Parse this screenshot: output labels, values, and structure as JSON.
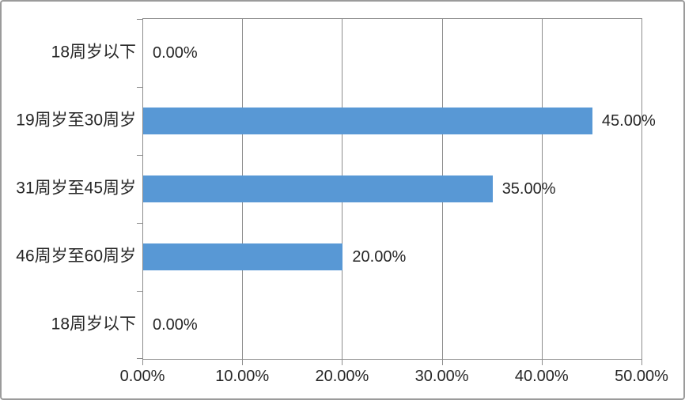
{
  "chart_data": {
    "type": "bar",
    "orientation": "horizontal",
    "title": "",
    "legend": "none",
    "grid": "vertical",
    "categories": [
      "18周岁以下",
      "19周岁至30周岁",
      "31周岁至45周岁",
      "46周岁至60周岁",
      "18周岁以下"
    ],
    "values": [
      0,
      45,
      35,
      20,
      0
    ],
    "data_labels": [
      "0.00%",
      "45.00%",
      "35.00%",
      "20.00%",
      "0.00%"
    ],
    "x_tick_labels": [
      "0.00%",
      "10.00%",
      "20.00%",
      "30.00%",
      "40.00%",
      "50.00%"
    ],
    "xlim": [
      0,
      50
    ],
    "colors": {
      "bar": "#5898D5",
      "gridline": "#8C8C8C",
      "text": "#262626",
      "frame_border": "#9B9B9B",
      "background": "#FFFFFF"
    }
  }
}
